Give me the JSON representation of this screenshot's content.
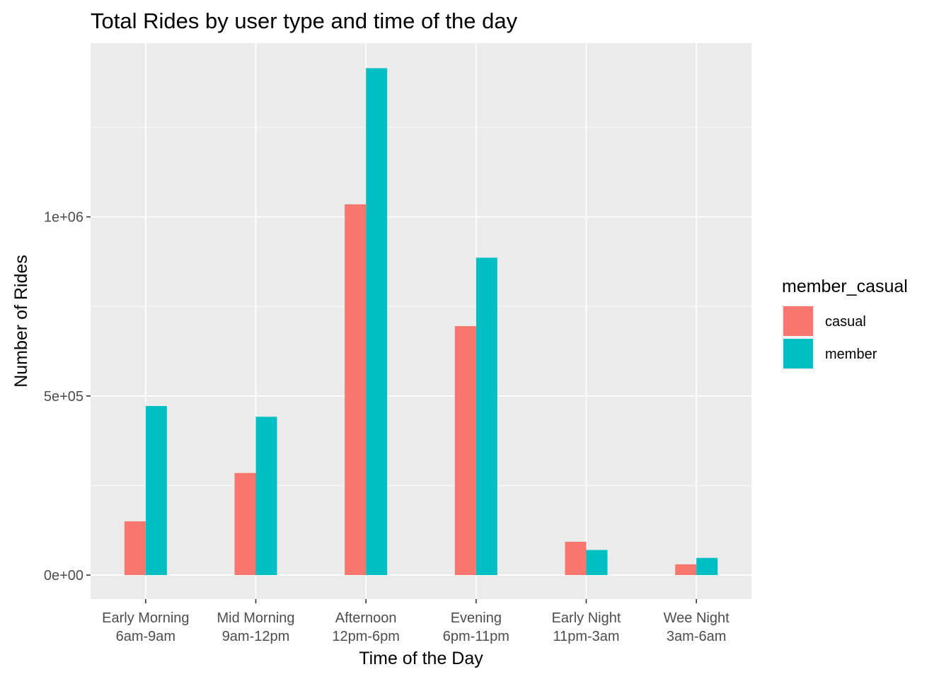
{
  "chart_data": {
    "type": "bar",
    "title": "Total Rides by user type and time of the day",
    "xlabel": "Time of the Day",
    "ylabel": "Number of Rides",
    "categories": [
      [
        "Early Morning",
        "6am-9am"
      ],
      [
        "Mid Morning",
        "9am-12pm"
      ],
      [
        "Afternoon",
        "12pm-6pm"
      ],
      [
        "Evening",
        "6pm-11pm"
      ],
      [
        "Early Night",
        "11pm-3am"
      ],
      [
        "Wee Night",
        "3am-6am"
      ]
    ],
    "series": [
      {
        "name": "casual",
        "color": "#F8766D",
        "values": [
          150000,
          285000,
          1035000,
          695000,
          93000,
          30000
        ]
      },
      {
        "name": "member",
        "color": "#00BFC4",
        "values": [
          472000,
          442000,
          1415000,
          886000,
          70000,
          48000
        ]
      }
    ],
    "ylim": [
      -67000,
      1485000
    ],
    "yticks": [
      {
        "value": 0,
        "label": "0e+00"
      },
      {
        "value": 500000,
        "label": "5e+05"
      },
      {
        "value": 1000000,
        "label": "1e+06"
      }
    ],
    "y_minor_ticks": [
      250000,
      750000,
      1250000
    ],
    "legend": {
      "title": "member_casual",
      "position": "right"
    },
    "grid": true
  }
}
